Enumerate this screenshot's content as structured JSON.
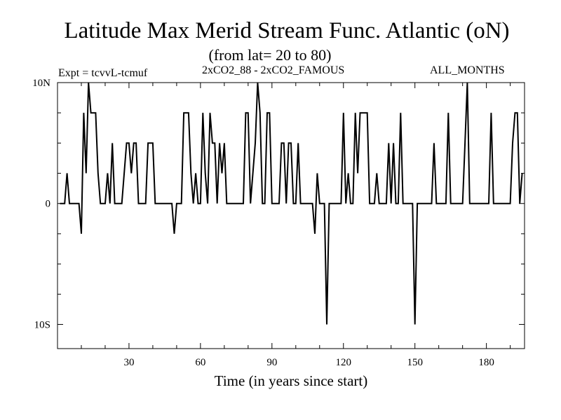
{
  "header": {
    "title": "Latitude Max Merid Stream Func. Atlantic (oN)",
    "subtitle": "(from lat= 20 to 80)",
    "expt": "Expt = tcvvL-tcmuf",
    "difference": "2xCO2_88 - 2xCO2_FAMOUS",
    "months": "ALL_MONTHS"
  },
  "chart_data": {
    "type": "line",
    "title": "Latitude Max Merid Stream Func. Atlantic (oN)",
    "subtitle": "(from lat= 20 to 80)",
    "xlabel": "Time (in years since start)",
    "ylabel": "",
    "xlim": [
      0,
      196
    ],
    "ylim": [
      -12,
      10
    ],
    "x_ticks": [
      30,
      60,
      90,
      120,
      150,
      180
    ],
    "y_ticks": [
      {
        "value": 10,
        "label": "10N"
      },
      {
        "value": 0,
        "label": "0"
      },
      {
        "value": -10,
        "label": "10S"
      }
    ],
    "grid": false,
    "series": [
      {
        "points": [
          [
            1,
            0
          ],
          [
            3,
            0
          ],
          [
            4,
            2.5
          ],
          [
            5,
            0
          ],
          [
            8,
            0
          ],
          [
            9,
            0
          ],
          [
            10,
            -2.5
          ],
          [
            11,
            7.5
          ],
          [
            12,
            2.5
          ],
          [
            13,
            10
          ],
          [
            14,
            7.5
          ],
          [
            15,
            7.5
          ],
          [
            16,
            7.5
          ],
          [
            17,
            2.5
          ],
          [
            18,
            0
          ],
          [
            19,
            0
          ],
          [
            20,
            0
          ],
          [
            21,
            2.5
          ],
          [
            22,
            0
          ],
          [
            23,
            5
          ],
          [
            24,
            0
          ],
          [
            25,
            0
          ],
          [
            26,
            0
          ],
          [
            27,
            0
          ],
          [
            28,
            2.5
          ],
          [
            29,
            5
          ],
          [
            30,
            5
          ],
          [
            31,
            2.5
          ],
          [
            32,
            5
          ],
          [
            33,
            5
          ],
          [
            34,
            0
          ],
          [
            35,
            0
          ],
          [
            36,
            0
          ],
          [
            37,
            0
          ],
          [
            38,
            5
          ],
          [
            39,
            5
          ],
          [
            40,
            5
          ],
          [
            41,
            0
          ],
          [
            42,
            0
          ],
          [
            48,
            0
          ],
          [
            49,
            -2.5
          ],
          [
            50,
            0
          ],
          [
            51,
            0
          ],
          [
            52,
            0
          ],
          [
            53,
            7.5
          ],
          [
            54,
            7.5
          ],
          [
            55,
            7.5
          ],
          [
            56,
            2.5
          ],
          [
            57,
            0
          ],
          [
            58,
            2.5
          ],
          [
            59,
            0
          ],
          [
            60,
            0
          ],
          [
            61,
            7.5
          ],
          [
            62,
            2.5
          ],
          [
            63,
            0
          ],
          [
            64,
            7.5
          ],
          [
            65,
            5
          ],
          [
            66,
            5
          ],
          [
            67,
            0
          ],
          [
            68,
            5
          ],
          [
            69,
            2.5
          ],
          [
            70,
            5
          ],
          [
            71,
            0
          ],
          [
            72,
            0
          ],
          [
            78,
            0
          ],
          [
            79,
            7.5
          ],
          [
            80,
            7.5
          ],
          [
            81,
            0
          ],
          [
            82,
            2.5
          ],
          [
            83,
            5
          ],
          [
            84,
            10
          ],
          [
            85,
            7.5
          ],
          [
            86,
            0
          ],
          [
            87,
            0
          ],
          [
            88,
            7.5
          ],
          [
            89,
            7.5
          ],
          [
            90,
            0
          ],
          [
            91,
            0
          ],
          [
            92,
            0
          ],
          [
            93,
            0
          ],
          [
            94,
            5
          ],
          [
            95,
            5
          ],
          [
            96,
            0
          ],
          [
            97,
            5
          ],
          [
            98,
            5
          ],
          [
            99,
            0
          ],
          [
            100,
            0
          ],
          [
            101,
            5
          ],
          [
            102,
            0
          ],
          [
            103,
            0
          ],
          [
            107,
            0
          ],
          [
            108,
            -2.5
          ],
          [
            109,
            2.5
          ],
          [
            110,
            0
          ],
          [
            111,
            0
          ],
          [
            112,
            0
          ],
          [
            113,
            -10
          ],
          [
            114,
            0
          ],
          [
            115,
            0
          ],
          [
            116,
            0
          ],
          [
            117,
            0
          ],
          [
            118,
            0
          ],
          [
            119,
            0
          ],
          [
            120,
            7.5
          ],
          [
            121,
            0
          ],
          [
            122,
            2.5
          ],
          [
            123,
            0
          ],
          [
            124,
            0
          ],
          [
            125,
            7.5
          ],
          [
            126,
            2.5
          ],
          [
            127,
            7.5
          ],
          [
            128,
            7.5
          ],
          [
            129,
            7.5
          ],
          [
            130,
            7.5
          ],
          [
            131,
            0
          ],
          [
            132,
            0
          ],
          [
            133,
            0
          ],
          [
            134,
            2.5
          ],
          [
            135,
            0
          ],
          [
            136,
            0
          ],
          [
            137,
            0
          ],
          [
            138,
            0
          ],
          [
            139,
            5
          ],
          [
            140,
            0
          ],
          [
            141,
            5
          ],
          [
            142,
            0
          ],
          [
            143,
            0
          ],
          [
            144,
            7.5
          ],
          [
            145,
            0
          ],
          [
            146,
            0
          ],
          [
            147,
            0
          ],
          [
            148,
            0
          ],
          [
            149,
            0
          ],
          [
            150,
            -10
          ],
          [
            151,
            0
          ],
          [
            152,
            0
          ],
          [
            157,
            0
          ],
          [
            158,
            5
          ],
          [
            159,
            0
          ],
          [
            160,
            0
          ],
          [
            161,
            0
          ],
          [
            162,
            0
          ],
          [
            163,
            0
          ],
          [
            164,
            7.5
          ],
          [
            165,
            0
          ],
          [
            166,
            0
          ],
          [
            167,
            0
          ],
          [
            168,
            0
          ],
          [
            169,
            0
          ],
          [
            170,
            0
          ],
          [
            171,
            5
          ],
          [
            172,
            10
          ],
          [
            173,
            0
          ],
          [
            174,
            0
          ],
          [
            181,
            0
          ],
          [
            182,
            7.5
          ],
          [
            183,
            0
          ],
          [
            184,
            0
          ],
          [
            190,
            0
          ],
          [
            191,
            5
          ],
          [
            192,
            7.5
          ],
          [
            193,
            7.5
          ],
          [
            194,
            0
          ],
          [
            195,
            2.5
          ]
        ]
      }
    ]
  }
}
